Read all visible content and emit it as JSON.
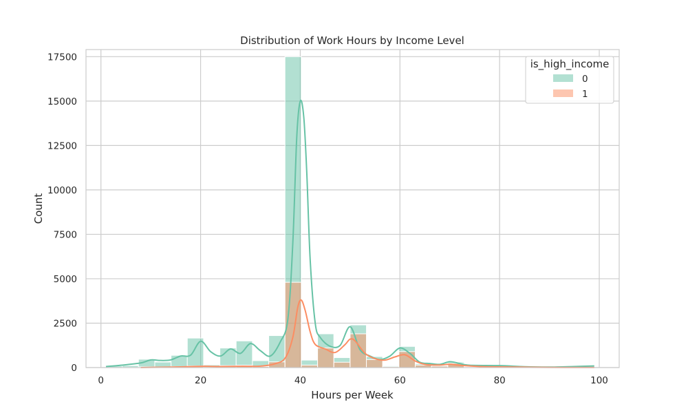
{
  "chart_data": {
    "type": "bar",
    "subtype": "histogram-with-kde",
    "title": "Distribution of Work Hours by Income Level",
    "xlabel": "Hours per Week",
    "ylabel": "Count",
    "xlim": [
      -3,
      104
    ],
    "ylim": [
      0,
      17900
    ],
    "xticks": [
      0,
      20,
      40,
      60,
      80,
      100
    ],
    "yticks": [
      0,
      2500,
      5000,
      7500,
      10000,
      12500,
      15000,
      17500
    ],
    "grid": true,
    "legend": {
      "title": "is_high_income",
      "placement": "top-right"
    },
    "bin_edges": [
      1,
      4.27,
      7.53,
      10.8,
      14.07,
      17.33,
      20.6,
      23.87,
      27.13,
      30.4,
      33.67,
      36.93,
      40.2,
      43.47,
      46.73,
      50.0,
      53.27,
      56.53,
      59.8,
      63.07,
      66.33,
      69.6,
      72.87,
      76.13,
      79.4,
      82.67,
      85.93,
      89.2,
      92.47,
      95.73,
      99
    ],
    "series": [
      {
        "name": "0",
        "color": "#66c2a5",
        "values": [
          90,
          110,
          470,
          310,
          690,
          1660,
          150,
          1100,
          1500,
          390,
          1800,
          17500,
          420,
          1900,
          560,
          2400,
          620,
          100,
          1190,
          210,
          120,
          310,
          40,
          30,
          100,
          20,
          20,
          10,
          10,
          80
        ],
        "kde": [
          [
            1,
            60
          ],
          [
            4,
            130
          ],
          [
            8,
            260
          ],
          [
            10,
            430
          ],
          [
            12,
            400
          ],
          [
            14,
            430
          ],
          [
            16,
            650
          ],
          [
            18,
            700
          ],
          [
            20,
            1480
          ],
          [
            22,
            900
          ],
          [
            24,
            650
          ],
          [
            26,
            1050
          ],
          [
            28,
            800
          ],
          [
            30,
            1350
          ],
          [
            32,
            950
          ],
          [
            34,
            650
          ],
          [
            36,
            1450
          ],
          [
            37.5,
            2700
          ],
          [
            38.5,
            7000
          ],
          [
            39.3,
            13000
          ],
          [
            40,
            15000
          ],
          [
            40.7,
            14100
          ],
          [
            41.3,
            11000
          ],
          [
            42,
            6000
          ],
          [
            43,
            2500
          ],
          [
            44,
            1700
          ],
          [
            46,
            1200
          ],
          [
            48,
            1250
          ],
          [
            50,
            2300
          ],
          [
            52,
            1000
          ],
          [
            54,
            650
          ],
          [
            56,
            450
          ],
          [
            58,
            650
          ],
          [
            60,
            1100
          ],
          [
            62,
            800
          ],
          [
            64,
            300
          ],
          [
            66,
            230
          ],
          [
            68,
            180
          ],
          [
            70,
            330
          ],
          [
            72,
            230
          ],
          [
            74,
            130
          ],
          [
            80,
            110
          ],
          [
            85,
            50
          ],
          [
            90,
            30
          ],
          [
            95,
            60
          ],
          [
            99,
            90
          ]
        ]
      },
      {
        "name": "1",
        "color": "#fc8d62",
        "values": [
          5,
          10,
          40,
          30,
          60,
          90,
          10,
          110,
          130,
          60,
          320,
          4800,
          140,
          1100,
          300,
          1900,
          450,
          50,
          900,
          140,
          80,
          240,
          30,
          20,
          80,
          10,
          10,
          5,
          5,
          20
        ],
        "kde": [
          [
            8,
            0
          ],
          [
            12,
            20
          ],
          [
            16,
            40
          ],
          [
            20,
            70
          ],
          [
            24,
            60
          ],
          [
            28,
            70
          ],
          [
            32,
            80
          ],
          [
            35,
            220
          ],
          [
            37,
            550
          ],
          [
            38.5,
            1700
          ],
          [
            39.5,
            3400
          ],
          [
            40.2,
            3800
          ],
          [
            41,
            3200
          ],
          [
            42,
            2000
          ],
          [
            43,
            1300
          ],
          [
            45,
            1050
          ],
          [
            47,
            850
          ],
          [
            49,
            1300
          ],
          [
            50,
            1600
          ],
          [
            51,
            1500
          ],
          [
            53,
            800
          ],
          [
            55,
            500
          ],
          [
            57,
            420
          ],
          [
            59,
            600
          ],
          [
            61,
            720
          ],
          [
            63,
            380
          ],
          [
            65,
            180
          ],
          [
            68,
            140
          ],
          [
            70,
            190
          ],
          [
            72,
            130
          ],
          [
            76,
            60
          ],
          [
            80,
            40
          ],
          [
            90,
            10
          ],
          [
            99,
            5
          ]
        ]
      }
    ]
  }
}
